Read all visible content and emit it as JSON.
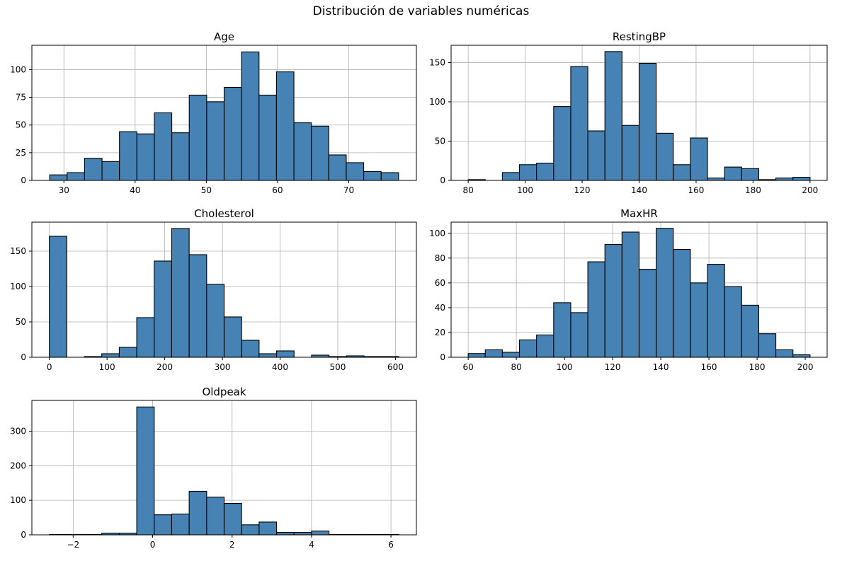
{
  "figure": {
    "suptitle": "Distribución de variables numéricas",
    "bar_fill": "#4682b4",
    "bar_edge": "#000000",
    "grid_color": "#b0b0b0"
  },
  "chart_data": [
    {
      "type": "bar",
      "id": "age",
      "title": "Age",
      "bin_start": 28,
      "bin_width": 2.45,
      "values": [
        5,
        7,
        20,
        17,
        44,
        42,
        61,
        43,
        77,
        71,
        84,
        116,
        77,
        98,
        52,
        49,
        23,
        16,
        8,
        7
      ],
      "xlim": [
        25.5,
        79.5
      ],
      "ylim": [
        0,
        122
      ],
      "xticks": [
        30,
        40,
        50,
        60,
        70
      ],
      "yticks": [
        0,
        25,
        50,
        75,
        100
      ],
      "grid": true
    },
    {
      "type": "bar",
      "id": "restingbp",
      "title": "RestingBP",
      "bin_start": 80,
      "bin_width": 6,
      "values": [
        1,
        0,
        10,
        20,
        22,
        94,
        145,
        63,
        164,
        70,
        149,
        60,
        20,
        54,
        3,
        17,
        15,
        1,
        3,
        4
      ],
      "xlim": [
        74,
        206
      ],
      "ylim": [
        0,
        172
      ],
      "xticks": [
        80,
        100,
        120,
        140,
        160,
        180,
        200
      ],
      "yticks": [
        0,
        50,
        100,
        150
      ],
      "grid": true
    },
    {
      "type": "bar",
      "id": "cholesterol",
      "title": "Cholesterol",
      "bin_start": 0,
      "bin_width": 30.3,
      "values": [
        171,
        0,
        1,
        5,
        14,
        56,
        136,
        182,
        145,
        103,
        57,
        24,
        5,
        9,
        0,
        3,
        1,
        2,
        1,
        1
      ],
      "xlim": [
        -30.3,
        636.3
      ],
      "ylim": [
        0,
        191
      ],
      "xticks": [
        0,
        100,
        200,
        300,
        400,
        500,
        600
      ],
      "yticks": [
        0,
        50,
        100,
        150
      ],
      "grid": true
    },
    {
      "type": "bar",
      "id": "maxhr",
      "title": "MaxHR",
      "bin_start": 60,
      "bin_width": 7.1,
      "values": [
        3,
        6,
        4,
        14,
        18,
        44,
        36,
        77,
        91,
        101,
        71,
        104,
        87,
        60,
        75,
        57,
        42,
        19,
        6,
        2
      ],
      "xlim": [
        52.9,
        209.1
      ],
      "ylim": [
        0,
        109
      ],
      "xticks": [
        60,
        80,
        100,
        120,
        140,
        160,
        180,
        200
      ],
      "yticks": [
        0,
        20,
        40,
        60,
        80,
        100
      ],
      "grid": true
    },
    {
      "type": "bar",
      "id": "oldpeak",
      "title": "Oldpeak",
      "bin_start": -2.6,
      "bin_width": 0.44,
      "values": [
        1,
        1,
        1,
        5,
        5,
        370,
        58,
        60,
        126,
        109,
        91,
        29,
        37,
        7,
        7,
        11,
        1,
        1,
        1,
        1
      ],
      "xlim": [
        -3.04,
        6.64
      ],
      "ylim": [
        0,
        389
      ],
      "xticks": [
        -2,
        0,
        2,
        4,
        6
      ],
      "yticks": [
        0,
        100,
        200,
        300
      ],
      "grid": true
    }
  ]
}
